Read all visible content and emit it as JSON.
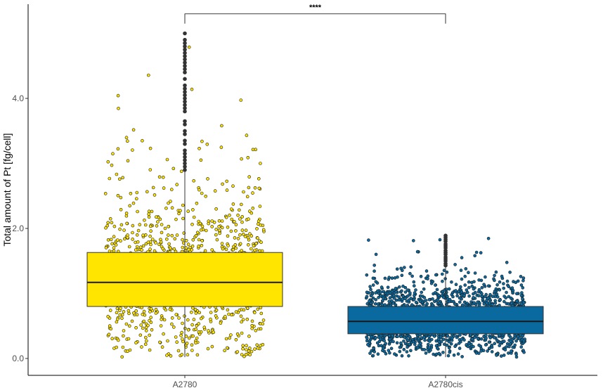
{
  "chart_data": {
    "type": "box",
    "title": "",
    "xlabel": "",
    "ylabel": "Total amount of Pt [fg/cell]",
    "ylim": [
      -0.05,
      5.3
    ],
    "yticks": [
      0.0,
      2.0,
      4.0
    ],
    "ytick_labels": [
      "0.0",
      "2.0",
      "4.0"
    ],
    "categories": [
      "A2780",
      "A2780cis"
    ],
    "grid": false,
    "legend": "none",
    "significance": {
      "label": "****",
      "between": [
        "A2780",
        "A2780cis"
      ],
      "y": 5.3,
      "drop": 0.15
    },
    "series": [
      {
        "category": "A2780",
        "color": "#ffe500",
        "outline": "#333333",
        "jitter_color": "#ffe500",
        "q1": 0.8,
        "median": 1.17,
        "q3": 1.63,
        "whisker_low": 0.02,
        "whisker_high": 2.88,
        "n_points": 1100,
        "outliers": [
          2.9,
          2.95,
          3.0,
          3.05,
          3.1,
          3.15,
          3.2,
          3.3,
          3.35,
          3.45,
          3.5,
          3.6,
          3.65,
          3.8,
          3.85,
          3.9,
          3.95,
          4.0,
          4.05,
          4.1,
          4.15,
          4.2,
          4.3,
          4.4,
          4.45,
          4.5,
          4.55,
          4.6,
          4.65,
          4.7,
          4.75,
          4.8,
          4.85,
          4.9,
          5.0
        ]
      },
      {
        "category": "A2780cis",
        "color": "#0a6aa0",
        "outline": "#333333",
        "jitter_color": "#0a6aa0",
        "q1": 0.38,
        "median": 0.57,
        "q3": 0.8,
        "whisker_low": 0.02,
        "whisker_high": 1.42,
        "n_points": 1700,
        "outliers": [
          1.43,
          1.46,
          1.5,
          1.53,
          1.56,
          1.6,
          1.63,
          1.66,
          1.7,
          1.73,
          1.76,
          1.8,
          1.83,
          1.86,
          1.89
        ]
      }
    ]
  }
}
